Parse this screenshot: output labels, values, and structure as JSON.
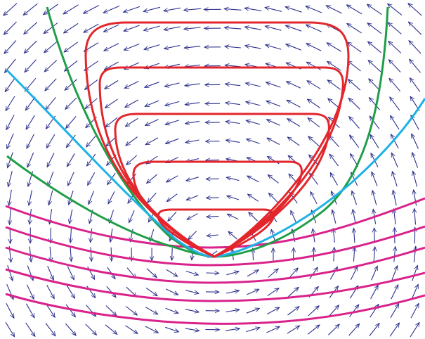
{
  "diagram": {
    "type": "phase-portrait",
    "vector_field": {
      "color": "#2b2f8c",
      "arrow_style": "thin-arrow",
      "regions": [
        {
          "where": "left",
          "direction": "down-right"
        },
        {
          "where": "right",
          "direction": "up-right"
        },
        {
          "where": "upper-center",
          "direction": "left"
        },
        {
          "where": "lower-center",
          "direction": "right"
        }
      ]
    },
    "curves": [
      {
        "kind": "closed-orbit",
        "color": "#e3262c",
        "count": 5
      },
      {
        "kind": "separatrix-outer",
        "color": "#1f9e48"
      },
      {
        "kind": "separatrix-inner",
        "color": "#1fb1e5"
      },
      {
        "kind": "open-trajectory",
        "color": "#d9238b",
        "count": 5
      }
    ]
  }
}
